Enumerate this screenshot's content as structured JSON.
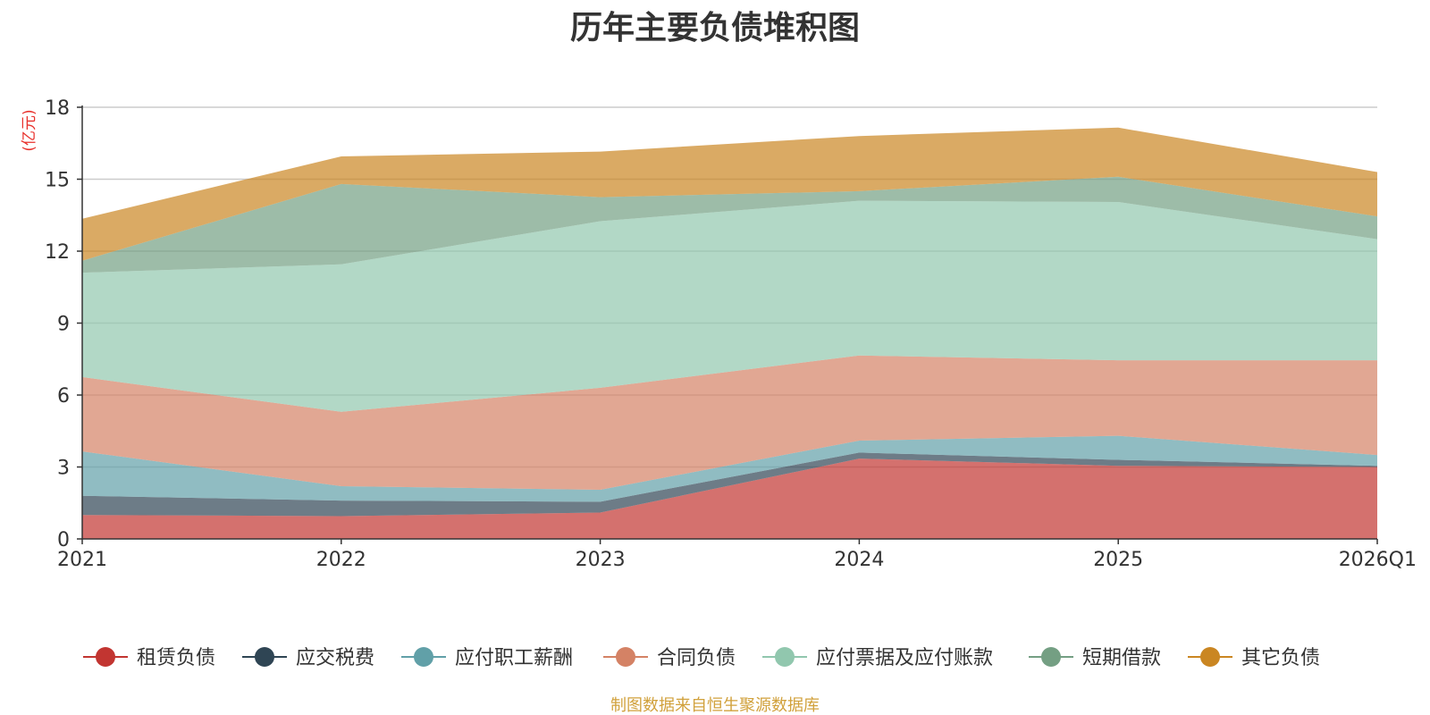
{
  "chart_data": {
    "type": "area",
    "stacked": true,
    "title": "历年主要负债堆积图",
    "ylabel": "(亿元)",
    "xlabel": "",
    "categories": [
      "2021",
      "2022",
      "2023",
      "2024",
      "2025",
      "2026Q1"
    ],
    "ylim": [
      0,
      18
    ],
    "yticks": [
      0,
      3,
      6,
      9,
      12,
      15,
      18
    ],
    "grid": true,
    "legend_position": "bottom",
    "series": [
      {
        "name": "租赁负债",
        "color": "#c23531",
        "values": [
          1.0,
          0.95,
          1.1,
          3.35,
          3.05,
          3.0
        ]
      },
      {
        "name": "应交税费",
        "color": "#2f4554",
        "values": [
          0.8,
          0.65,
          0.45,
          0.25,
          0.25,
          0.05
        ]
      },
      {
        "name": "应付职工薪酬",
        "color": "#61a0a8",
        "values": [
          1.85,
          0.6,
          0.5,
          0.5,
          1.0,
          0.45
        ]
      },
      {
        "name": "合同负债",
        "color": "#d48265",
        "values": [
          3.1,
          3.1,
          4.25,
          3.55,
          3.15,
          3.95
        ]
      },
      {
        "name": "应付票据及应付账款",
        "color": "#91c7ae",
        "values": [
          4.35,
          6.15,
          6.95,
          6.45,
          6.6,
          5.05
        ]
      },
      {
        "name": "短期借款",
        "color": "#749f83",
        "values": [
          0.5,
          3.35,
          1.0,
          0.4,
          1.05,
          0.95
        ]
      },
      {
        "name": "其它负债",
        "color": "#ca8622",
        "values": [
          1.75,
          1.15,
          1.9,
          2.3,
          2.05,
          1.85
        ]
      }
    ]
  },
  "source_note": "制图数据来自恒生聚源数据库"
}
